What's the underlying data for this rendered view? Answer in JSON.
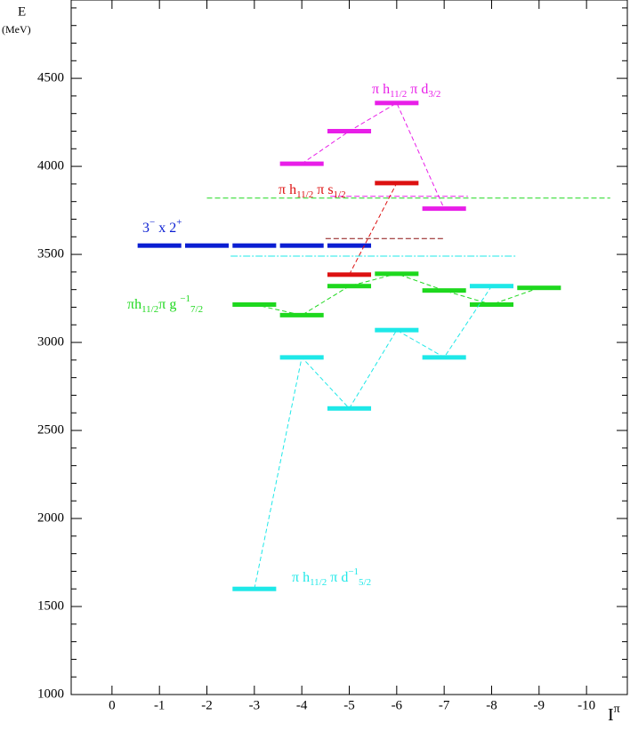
{
  "chart_data": {
    "type": "level-scheme",
    "y_title": "E",
    "y_unit": "(MeV)",
    "x_title": [
      [
        "I",
        ""
      ],
      [
        "π",
        "sup"
      ]
    ],
    "xlim": [
      0.86,
      -10.86
    ],
    "ylim": [
      1000,
      4945
    ],
    "xticks": [
      0,
      -1,
      -2,
      -3,
      -4,
      -5,
      -6,
      -7,
      -8,
      -9,
      -10
    ],
    "yticks": [
      1000,
      1500,
      2000,
      2500,
      3000,
      3500,
      4000,
      4500
    ],
    "yminorticks": [
      1100,
      1200,
      1300,
      1400,
      1600,
      1700,
      1800,
      1900,
      2100,
      2200,
      2300,
      2400,
      2600,
      2700,
      2800,
      2900,
      3100,
      3200,
      3300,
      3400,
      3600,
      3700,
      3800,
      3900,
      4100,
      4200,
      4300,
      4400,
      4600,
      4700,
      4800,
      4900
    ],
    "series": [
      {
        "name": [
          [
            "3",
            ""
          ],
          [
            "−",
            "sup"
          ],
          [
            " x 2",
            ""
          ],
          [
            "+",
            "sup"
          ]
        ],
        "color": "#0a1ed2",
        "connect": false,
        "x": [
          -1,
          -2,
          -3,
          -4,
          -5
        ],
        "values": [
          3550,
          3550,
          3550,
          3550,
          3550
        ]
      },
      {
        "name": [
          [
            "πh",
            ""
          ],
          [
            "11/2",
            "sub"
          ],
          [
            "π g ",
            ""
          ],
          [
            "−1",
            "sup"
          ],
          [
            "7/2",
            "sub"
          ]
        ],
        "color": "#1ed81e",
        "connect": true,
        "x": [
          -3,
          -4,
          -5,
          -6,
          -7,
          -8,
          -9
        ],
        "values": [
          3215,
          3155,
          3320,
          3390,
          3295,
          3215,
          3310
        ]
      },
      {
        "name": [
          [
            "π h",
            ""
          ],
          [
            "11/2",
            "sub"
          ],
          [
            " π d",
            ""
          ],
          [
            "−1",
            "sup"
          ],
          [
            "5/2",
            "sub"
          ]
        ],
        "color": "#1ee8e8",
        "connect": true,
        "x": [
          -3,
          -4,
          -5,
          -6,
          -7,
          -8
        ],
        "values": [
          1600,
          2915,
          2625,
          3070,
          2915,
          3320
        ]
      },
      {
        "name": [
          [
            "π h",
            ""
          ],
          [
            "11/2",
            "sub"
          ],
          [
            " π d",
            ""
          ],
          [
            "3/2",
            "sub"
          ]
        ],
        "color": "#e81ee8",
        "connect": true,
        "x": [
          -4,
          -5,
          -6,
          -7
        ],
        "values": [
          4015,
          4200,
          4360,
          3760
        ]
      },
      {
        "name": [
          [
            "π h",
            ""
          ],
          [
            "11/2",
            "sub"
          ],
          [
            " π s",
            ""
          ],
          [
            "1/2",
            "sub"
          ]
        ],
        "color": "#dd1111",
        "connect": true,
        "x": [
          -5,
          -6
        ],
        "values": [
          3385,
          3905
        ]
      }
    ],
    "centroids": [
      {
        "color": "#1ed81e",
        "value": 3820,
        "x": [
          -2,
          -10.5
        ]
      },
      {
        "color": "#e81ee8",
        "value": 3830,
        "x": [
          -4.6,
          -7.5
        ]
      },
      {
        "color": "#1ee8e8",
        "value": 3490,
        "x": [
          -2.5,
          -8.5
        ]
      },
      {
        "color": "#8b1010",
        "value": 3590,
        "x": [
          -4.5,
          -7
        ]
      }
    ]
  }
}
